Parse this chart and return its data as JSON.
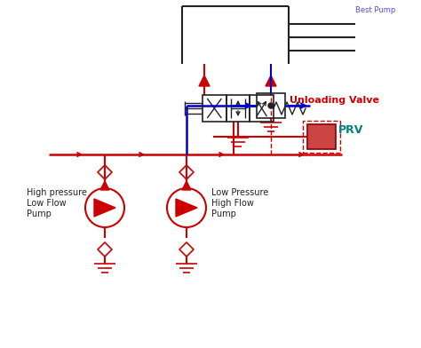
{
  "bg_color": "#ffffff",
  "red": "#cc0000",
  "blue": "#0000cc",
  "dark": "#222222",
  "green_text": "#008080",
  "label_hp": "High pressure\nLow Flow\nPump",
  "label_lp": "Low Pressure\nHigh Flow\nPump",
  "label_prv": "PRV",
  "label_unload": "Unloading Valve",
  "label_title": "Best Pump",
  "figsize": [
    4.74,
    3.92
  ],
  "dpi": 100
}
